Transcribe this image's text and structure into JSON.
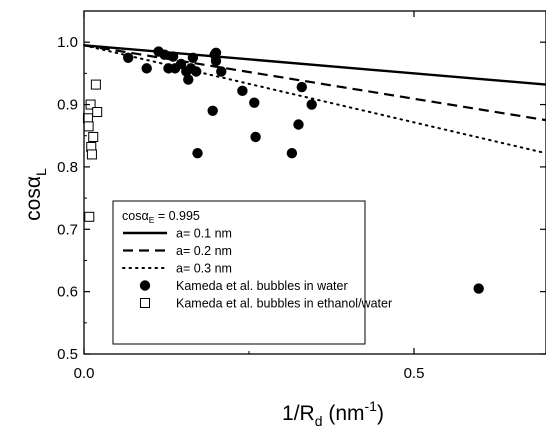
{
  "chart_data": {
    "type": "scatter",
    "title": "",
    "xlabel": {
      "main": "1/R",
      "sub": "d",
      "post": " (nm",
      "sup": "-1",
      "end": ")"
    },
    "ylabel": {
      "main": "cos",
      "greek": "α",
      "sub": "L"
    },
    "xlim": [
      0,
      0.7
    ],
    "ylim": [
      0.5,
      1.05
    ],
    "xticks": [
      {
        "value": 0.0,
        "label": "0.0"
      },
      {
        "value": 0.5,
        "label": "0.5"
      }
    ],
    "yticks": [
      {
        "value": 0.5,
        "label": "0.5"
      },
      {
        "value": 0.6,
        "label": "0.6"
      },
      {
        "value": 0.7,
        "label": "0.7"
      },
      {
        "value": 0.8,
        "label": "0.8"
      },
      {
        "value": 0.9,
        "label": "0.9"
      },
      {
        "value": 1.0,
        "label": "1.0"
      }
    ],
    "grid": false,
    "legend_position": "bottom-left",
    "legend_header": {
      "prefix": "cos",
      "greek": "α",
      "sub": "E",
      "suffix": " = 0.995"
    },
    "lines": [
      {
        "name": "a= 0.1 nm",
        "style": "solid",
        "x": [
          0.0,
          0.7
        ],
        "y": [
          0.995,
          0.932
        ]
      },
      {
        "name": "a= 0.2 nm",
        "style": "dashed",
        "x": [
          0.0,
          0.7
        ],
        "y": [
          0.995,
          0.875
        ]
      },
      {
        "name": "a= 0.3 nm",
        "style": "dotted",
        "x": [
          0.0,
          0.7
        ],
        "y": [
          0.995,
          0.822
        ]
      }
    ],
    "series": [
      {
        "name": "Kameda et al. bubbles in water",
        "marker": "filled-circle",
        "points": [
          [
            0.067,
            0.975
          ],
          [
            0.095,
            0.958
          ],
          [
            0.113,
            0.985
          ],
          [
            0.122,
            0.98
          ],
          [
            0.128,
            0.958
          ],
          [
            0.135,
            0.977
          ],
          [
            0.138,
            0.958
          ],
          [
            0.147,
            0.965
          ],
          [
            0.155,
            0.953
          ],
          [
            0.158,
            0.94
          ],
          [
            0.162,
            0.958
          ],
          [
            0.165,
            0.975
          ],
          [
            0.17,
            0.953
          ],
          [
            0.172,
            0.822
          ],
          [
            0.195,
            0.89
          ],
          [
            0.198,
            0.98
          ],
          [
            0.2,
            0.983
          ],
          [
            0.2,
            0.97
          ],
          [
            0.208,
            0.953
          ],
          [
            0.24,
            0.922
          ],
          [
            0.258,
            0.903
          ],
          [
            0.26,
            0.848
          ],
          [
            0.315,
            0.822
          ],
          [
            0.325,
            0.868
          ],
          [
            0.33,
            0.928
          ],
          [
            0.345,
            0.9
          ],
          [
            0.598,
            0.605
          ]
        ]
      },
      {
        "name": "Kameda et al. bubbles in ethanol/water",
        "marker": "open-square",
        "points": [
          [
            0.006,
            0.878
          ],
          [
            0.007,
            0.865
          ],
          [
            0.008,
            0.72
          ],
          [
            0.01,
            0.9
          ],
          [
            0.011,
            0.832
          ],
          [
            0.012,
            0.82
          ],
          [
            0.014,
            0.848
          ],
          [
            0.018,
            0.932
          ],
          [
            0.02,
            0.888
          ]
        ]
      }
    ]
  }
}
